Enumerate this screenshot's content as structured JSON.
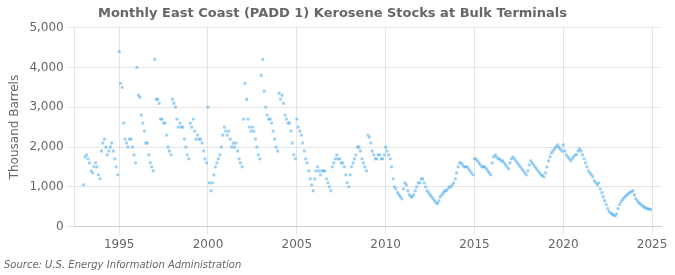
{
  "chart_data": {
    "type": "scatter",
    "title": "Monthly East Coast (PADD 1) Kerosene Stocks at Bulk Terminals",
    "y_label": "Thousand Barrels",
    "annotations": [
      "Source: U.S. Energy Information Administration"
    ],
    "marker": "square",
    "grid": true,
    "xlim": [
      1992.5,
      2025.5
    ],
    "xticks": [
      1995,
      2000,
      2005,
      2010,
      2015,
      2020,
      2025
    ],
    "ylim": [
      0,
      5000
    ],
    "yticks": [
      0,
      {
        "value": 1000,
        "label": "1,000"
      },
      {
        "value": 2000,
        "label": "2,000"
      },
      {
        "value": 3000,
        "label": "3,000"
      },
      {
        "value": 4000,
        "label": "4,000"
      },
      {
        "value": 5000,
        "label": "5,000"
      }
    ],
    "x": [
      1993.0,
      1993.08,
      1993.17,
      1993.25,
      1993.33,
      1993.42,
      1993.5,
      1993.58,
      1993.67,
      1993.75,
      1993.83,
      1993.92,
      1994.0,
      1994.08,
      1994.17,
      1994.25,
      1994.33,
      1994.42,
      1994.5,
      1994.58,
      1994.67,
      1994.75,
      1994.83,
      1994.92,
      1995.0,
      1995.08,
      1995.17,
      1995.25,
      1995.33,
      1995.42,
      1995.5,
      1995.58,
      1995.67,
      1995.75,
      1995.83,
      1995.92,
      1996.0,
      1996.08,
      1996.17,
      1996.25,
      1996.33,
      1996.42,
      1996.5,
      1996.58,
      1996.67,
      1996.75,
      1996.83,
      1996.92,
      1997.0,
      1997.08,
      1997.17,
      1997.25,
      1997.33,
      1997.42,
      1997.5,
      1997.58,
      1997.67,
      1997.75,
      1997.83,
      1997.92,
      1998.0,
      1998.08,
      1998.17,
      1998.25,
      1998.33,
      1998.42,
      1998.5,
      1998.58,
      1998.67,
      1998.75,
      1998.83,
      1998.92,
      1999.0,
      1999.08,
      1999.17,
      1999.25,
      1999.33,
      1999.42,
      1999.5,
      1999.58,
      1999.67,
      1999.75,
      1999.83,
      1999.92,
      2000.0,
      2000.08,
      2000.17,
      2000.25,
      2000.33,
      2000.42,
      2000.5,
      2000.58,
      2000.67,
      2000.75,
      2000.83,
      2000.92,
      2001.0,
      2001.08,
      2001.17,
      2001.25,
      2001.33,
      2001.42,
      2001.5,
      2001.58,
      2001.67,
      2001.75,
      2001.83,
      2001.92,
      2002.0,
      2002.08,
      2002.17,
      2002.25,
      2002.33,
      2002.42,
      2002.5,
      2002.58,
      2002.67,
      2002.75,
      2002.83,
      2002.92,
      2003.0,
      2003.08,
      2003.17,
      2003.25,
      2003.33,
      2003.42,
      2003.5,
      2003.58,
      2003.67,
      2003.75,
      2003.83,
      2003.92,
      2004.0,
      2004.08,
      2004.17,
      2004.25,
      2004.33,
      2004.42,
      2004.5,
      2004.58,
      2004.67,
      2004.75,
      2004.83,
      2004.92,
      2005.0,
      2005.08,
      2005.17,
      2005.25,
      2005.33,
      2005.42,
      2005.5,
      2005.58,
      2005.67,
      2005.75,
      2005.83,
      2005.92,
      2006.0,
      2006.08,
      2006.17,
      2006.25,
      2006.33,
      2006.42,
      2006.5,
      2006.58,
      2006.67,
      2006.75,
      2006.83,
      2006.92,
      2007.0,
      2007.08,
      2007.17,
      2007.25,
      2007.33,
      2007.42,
      2007.5,
      2007.58,
      2007.67,
      2007.75,
      2007.83,
      2007.92,
      2008.0,
      2008.08,
      2008.17,
      2008.25,
      2008.33,
      2008.42,
      2008.5,
      2008.58,
      2008.67,
      2008.75,
      2008.83,
      2008.92,
      2009.0,
      2009.08,
      2009.17,
      2009.25,
      2009.33,
      2009.42,
      2009.5,
      2009.58,
      2009.67,
      2009.75,
      2009.83,
      2009.92,
      2010.0,
      2010.08,
      2010.17,
      2010.25,
      2010.33,
      2010.42,
      2010.5,
      2010.58,
      2010.67,
      2010.75,
      2010.83,
      2010.92,
      2011.0,
      2011.08,
      2011.17,
      2011.25,
      2011.33,
      2011.42,
      2011.5,
      2011.58,
      2011.67,
      2011.75,
      2011.83,
      2011.92,
      2012.0,
      2012.08,
      2012.17,
      2012.25,
      2012.33,
      2012.42,
      2012.5,
      2012.58,
      2012.67,
      2012.75,
      2012.83,
      2012.92,
      2013.0,
      2013.08,
      2013.17,
      2013.25,
      2013.33,
      2013.42,
      2013.5,
      2013.58,
      2013.67,
      2013.75,
      2013.83,
      2013.92,
      2014.0,
      2014.08,
      2014.17,
      2014.25,
      2014.33,
      2014.42,
      2014.5,
      2014.58,
      2014.67,
      2014.75,
      2014.83,
      2014.92,
      2015.0,
      2015.08,
      2015.17,
      2015.25,
      2015.33,
      2015.42,
      2015.5,
      2015.58,
      2015.67,
      2015.75,
      2015.83,
      2015.92,
      2016.0,
      2016.08,
      2016.17,
      2016.25,
      2016.33,
      2016.42,
      2016.5,
      2016.58,
      2016.67,
      2016.75,
      2016.83,
      2016.92,
      2017.0,
      2017.08,
      2017.17,
      2017.25,
      2017.33,
      2017.42,
      2017.5,
      2017.58,
      2017.67,
      2017.75,
      2017.83,
      2017.92,
      2018.0,
      2018.08,
      2018.17,
      2018.25,
      2018.33,
      2018.42,
      2018.5,
      2018.58,
      2018.67,
      2018.75,
      2018.83,
      2018.92,
      2019.0,
      2019.08,
      2019.17,
      2019.25,
      2019.33,
      2019.42,
      2019.5,
      2019.58,
      2019.67,
      2019.75,
      2019.83,
      2019.92,
      2020.0,
      2020.08,
      2020.17,
      2020.25,
      2020.33,
      2020.42,
      2020.5,
      2020.58,
      2020.67,
      2020.75,
      2020.83,
      2020.92,
      2021.0,
      2021.08,
      2021.17,
      2021.25,
      2021.33,
      2021.42,
      2021.5,
      2021.58,
      2021.67,
      2021.75,
      2021.83,
      2021.92,
      2022.0,
      2022.08,
      2022.17,
      2022.25,
      2022.33,
      2022.42,
      2022.5,
      2022.58,
      2022.67,
      2022.75,
      2022.83,
      2022.92,
      2023.0,
      2023.08,
      2023.17,
      2023.25,
      2023.33,
      2023.42,
      2023.5,
      2023.58,
      2023.67,
      2023.75,
      2023.83,
      2023.92,
      2024.0,
      2024.08,
      2024.17,
      2024.25,
      2024.33,
      2024.42,
      2024.5,
      2024.58,
      2024.67,
      2024.75,
      2024.83,
      2024.92
    ],
    "values": [
      1050,
      1750,
      1800,
      1700,
      1600,
      1400,
      1350,
      1500,
      1600,
      1500,
      1300,
      1200,
      1900,
      2100,
      2200,
      2000,
      1800,
      1900,
      2000,
      2100,
      1900,
      1700,
      1500,
      1300,
      4400,
      3600,
      3500,
      2600,
      2200,
      2100,
      2000,
      2200,
      2200,
      2000,
      1800,
      1600,
      4000,
      3300,
      3250,
      2800,
      2600,
      2400,
      2100,
      2100,
      1800,
      1600,
      1500,
      1400,
      4200,
      3200,
      3200,
      3100,
      2700,
      2700,
      2600,
      2600,
      2300,
      2000,
      1900,
      1800,
      3200,
      3100,
      3000,
      2700,
      2500,
      2600,
      2500,
      2500,
      2200,
      2000,
      1800,
      1700,
      2600,
      2500,
      2700,
      2400,
      2200,
      2300,
      2200,
      2200,
      2100,
      1900,
      1700,
      1600,
      3000,
      1100,
      900,
      1100,
      1300,
      1500,
      1600,
      1700,
      1800,
      2000,
      2300,
      2500,
      2400,
      2300,
      2400,
      2200,
      2000,
      2100,
      2000,
      2100,
      1900,
      1700,
      1600,
      1500,
      2700,
      3600,
      3200,
      2700,
      2500,
      2400,
      2500,
      2400,
      2200,
      2000,
      1800,
      1700,
      3800,
      4200,
      3400,
      3000,
      2800,
      2700,
      2700,
      2600,
      2400,
      2200,
      2000,
      1900,
      3350,
      3200,
      3300,
      3100,
      2800,
      2700,
      2600,
      2600,
      2400,
      2100,
      1800,
      1700,
      2700,
      2500,
      2400,
      2300,
      2100,
      1900,
      1700,
      1600,
      1400,
      1200,
      1050,
      900,
      1200,
      1400,
      1500,
      1400,
      1300,
      1400,
      1400,
      1400,
      1200,
      1100,
      1000,
      900,
      1500,
      1600,
      1700,
      1800,
      1700,
      1700,
      1600,
      1600,
      1500,
      1300,
      1100,
      1000,
      1300,
      1500,
      1600,
      1700,
      1800,
      2000,
      2000,
      1900,
      1700,
      1600,
      1500,
      1400,
      2300,
      2250,
      2100,
      1900,
      1800,
      1700,
      1700,
      1800,
      1800,
      1700,
      1700,
      1800,
      2000,
      1900,
      1800,
      1700,
      1500,
      1200,
      1000,
      950,
      850,
      800,
      750,
      700,
      950,
      1100,
      1050,
      900,
      800,
      750,
      750,
      800,
      900,
      1000,
      1100,
      1100,
      1200,
      1200,
      1100,
      1000,
      900,
      850,
      800,
      750,
      700,
      650,
      600,
      580,
      650,
      750,
      800,
      850,
      900,
      900,
      950,
      1000,
      1000,
      1050,
      1100,
      1200,
      1350,
      1500,
      1600,
      1600,
      1550,
      1500,
      1500,
      1500,
      1450,
      1400,
      1350,
      1300,
      1700,
      1700,
      1650,
      1600,
      1550,
      1500,
      1500,
      1500,
      1450,
      1400,
      1350,
      1300,
      1600,
      1750,
      1800,
      1750,
      1700,
      1700,
      1650,
      1650,
      1600,
      1550,
      1500,
      1450,
      1600,
      1700,
      1750,
      1700,
      1650,
      1600,
      1550,
      1500,
      1450,
      1400,
      1350,
      1300,
      1400,
      1550,
      1650,
      1600,
      1550,
      1500,
      1450,
      1400,
      1350,
      1300,
      1280,
      1250,
      1350,
      1500,
      1650,
      1750,
      1850,
      1900,
      1950,
      2000,
      2050,
      2000,
      1950,
      1900,
      2050,
      1900,
      1800,
      1750,
      1700,
      1650,
      1700,
      1750,
      1800,
      1800,
      1900,
      1950,
      1900,
      1800,
      1700,
      1600,
      1500,
      1400,
      1350,
      1300,
      1250,
      1150,
      1100,
      1050,
      1100,
      950,
      850,
      750,
      650,
      550,
      450,
      380,
      340,
      310,
      290,
      270,
      320,
      450,
      550,
      620,
      680,
      720,
      760,
      800,
      830,
      860,
      880,
      900,
      800,
      700,
      650,
      600,
      570,
      540,
      510,
      480,
      460,
      450,
      440,
      430
    ]
  }
}
